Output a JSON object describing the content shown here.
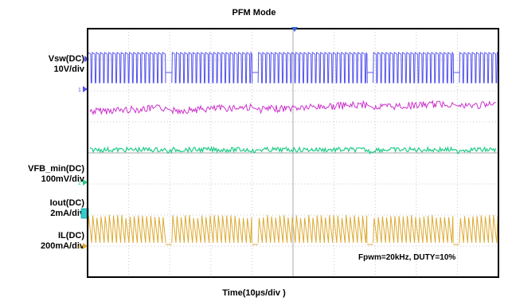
{
  "chart_data": {
    "type": "line",
    "title": "PFM Mode",
    "xlabel": "Time(10µs/div )",
    "annotation": "Fpwm=20kHz, DUTY=10%",
    "grid": true,
    "divisions": {
      "x": 10,
      "y": 8
    },
    "colors": {
      "background": "#ffffff",
      "grid": "#c8c8c8",
      "frame": "#000000"
    },
    "channels": [
      {
        "id": "ch1",
        "label_lines": [
          "Vsw(DC)",
          "10V/div"
        ],
        "marker": "1",
        "color": "#5555ee"
      },
      {
        "id": "ch2",
        "label_lines": [],
        "color": "#cc33cc"
      },
      {
        "id": "ch3",
        "label_lines": [
          "VFB_min(DC)",
          "100mV/div"
        ],
        "marker": "2",
        "color": "#22cc88"
      },
      {
        "id": "ch4",
        "label_lines": [
          "Iout(DC)",
          "2mA/div"
        ],
        "marker": "3",
        "color": "#33cccc"
      },
      {
        "id": "ch5",
        "label_lines": [
          "IL(DC)",
          "200mA/div"
        ],
        "marker": "4",
        "color": "#ddaa33"
      }
    ],
    "burst_windows_div": [
      [
        0,
        1.9
      ],
      [
        2.05,
        4.0
      ],
      [
        4.15,
        6.8
      ],
      [
        6.95,
        8.9
      ],
      [
        9.05,
        10
      ]
    ]
  }
}
